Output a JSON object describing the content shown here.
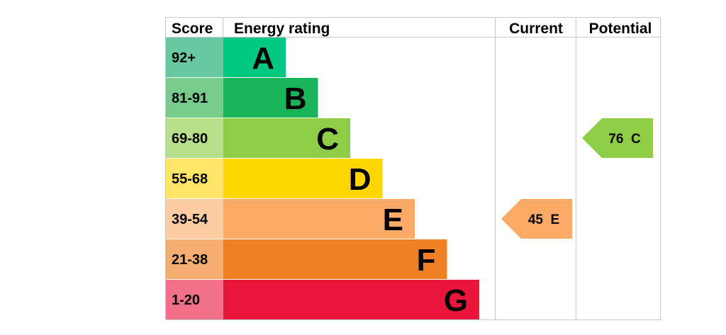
{
  "chart_data": {
    "type": "bar",
    "headers": {
      "score": "Score",
      "rating": "Energy rating",
      "current": "Current",
      "potential": "Potential"
    },
    "bands": [
      {
        "score": "92+",
        "letter": "A",
        "color": "#00c781",
        "score_color": "#66c9a0"
      },
      {
        "score": "81-91",
        "letter": "B",
        "color": "#19b459",
        "score_color": "#75cc8b"
      },
      {
        "score": "69-80",
        "letter": "C",
        "color": "#8dce46",
        "score_color": "#b5df8a"
      },
      {
        "score": "55-68",
        "letter": "D",
        "color": "#ffd500",
        "score_color": "#ffe466"
      },
      {
        "score": "39-54",
        "letter": "E",
        "color": "#fcaa65",
        "score_color": "#fdcca3"
      },
      {
        "score": "21-38",
        "letter": "F",
        "color": "#ef8023",
        "score_color": "#f5ad70"
      },
      {
        "score": "1-20",
        "letter": "G",
        "color": "#e9153b",
        "score_color": "#f2708a"
      }
    ],
    "current": {
      "value": 45,
      "letter": "E",
      "label": "45  E",
      "color": "#fcaa65"
    },
    "potential": {
      "value": 76,
      "letter": "C",
      "label": "76  C",
      "color": "#8dce46"
    }
  }
}
